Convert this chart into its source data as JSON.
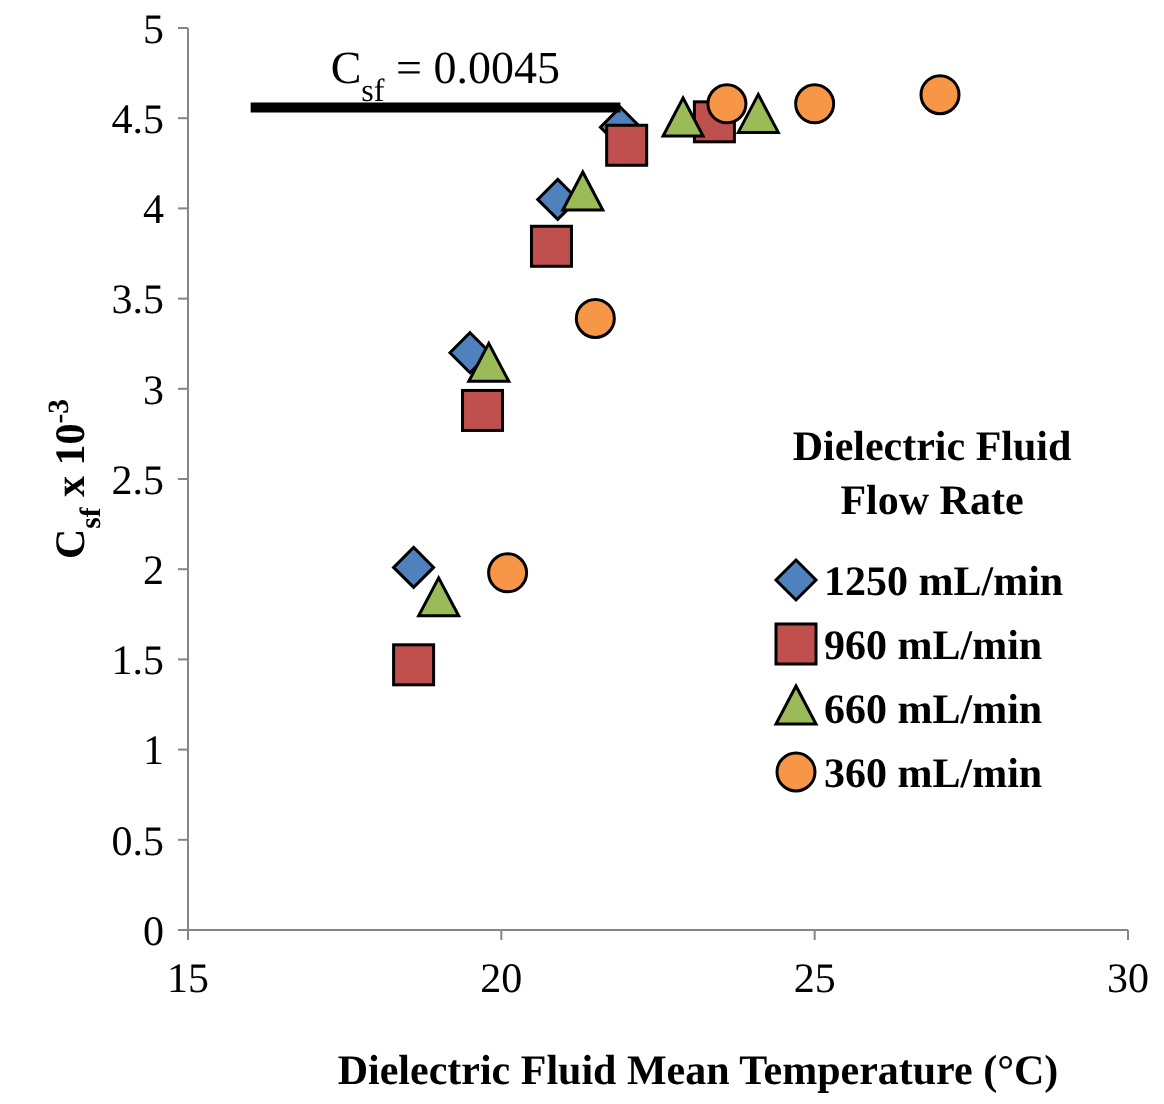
{
  "chart_data": {
    "type": "scatter",
    "xlabel": "Dielectric Fluid Mean Temperature (°C)",
    "ylabel": "C$_{sf}$ x 10$^{-3}$",
    "legend_title": "Dielectric Fluid Flow Rate",
    "legend": "bottom right",
    "grid": false,
    "xlim": [
      15,
      30
    ],
    "xticks": [
      15,
      20,
      25,
      30
    ],
    "ylim": [
      0,
      5
    ],
    "yticks": [
      0,
      0.5,
      1,
      1.5,
      2,
      2.5,
      3,
      3.5,
      4,
      4.5,
      5
    ],
    "series": [
      {
        "name": "1250 mL/min",
        "color": "#4f81bd",
        "marker": "diamond",
        "x": [
          18.6,
          19.5,
          20.9,
          21.9,
          null
        ],
        "values": [
          2.01,
          3.2,
          4.05,
          4.45,
          null
        ]
      },
      {
        "name": "960 mL/min",
        "color": "#c0504d",
        "marker": "square",
        "x": [
          18.6,
          19.7,
          20.8,
          22.0,
          23.4
        ],
        "values": [
          1.47,
          2.88,
          3.79,
          4.35,
          4.48
        ]
      },
      {
        "name": "660 mL/min",
        "color": "#9bbb59",
        "marker": "triangle",
        "x": [
          19.0,
          19.8,
          21.3,
          22.9,
          24.1
        ],
        "values": [
          1.83,
          3.13,
          4.08,
          4.49,
          4.51
        ]
      },
      {
        "name": "360 mL/min",
        "color": "#f79646",
        "marker": "circle",
        "x": [
          20.1,
          21.5,
          23.6,
          25.0,
          27.0
        ],
        "values": [
          1.98,
          3.39,
          4.58,
          4.58,
          4.63
        ]
      },
      {
        "type": "line",
        "color": "#000000",
        "marker": "none",
        "x": [
          16,
          21.9
        ],
        "values": [
          4.56,
          4.56
        ]
      }
    ],
    "annotations": [
      {
        "text": "C$_{sf}$ = 0.0045",
        "x": 16,
        "y": 4.56
      }
    ]
  }
}
